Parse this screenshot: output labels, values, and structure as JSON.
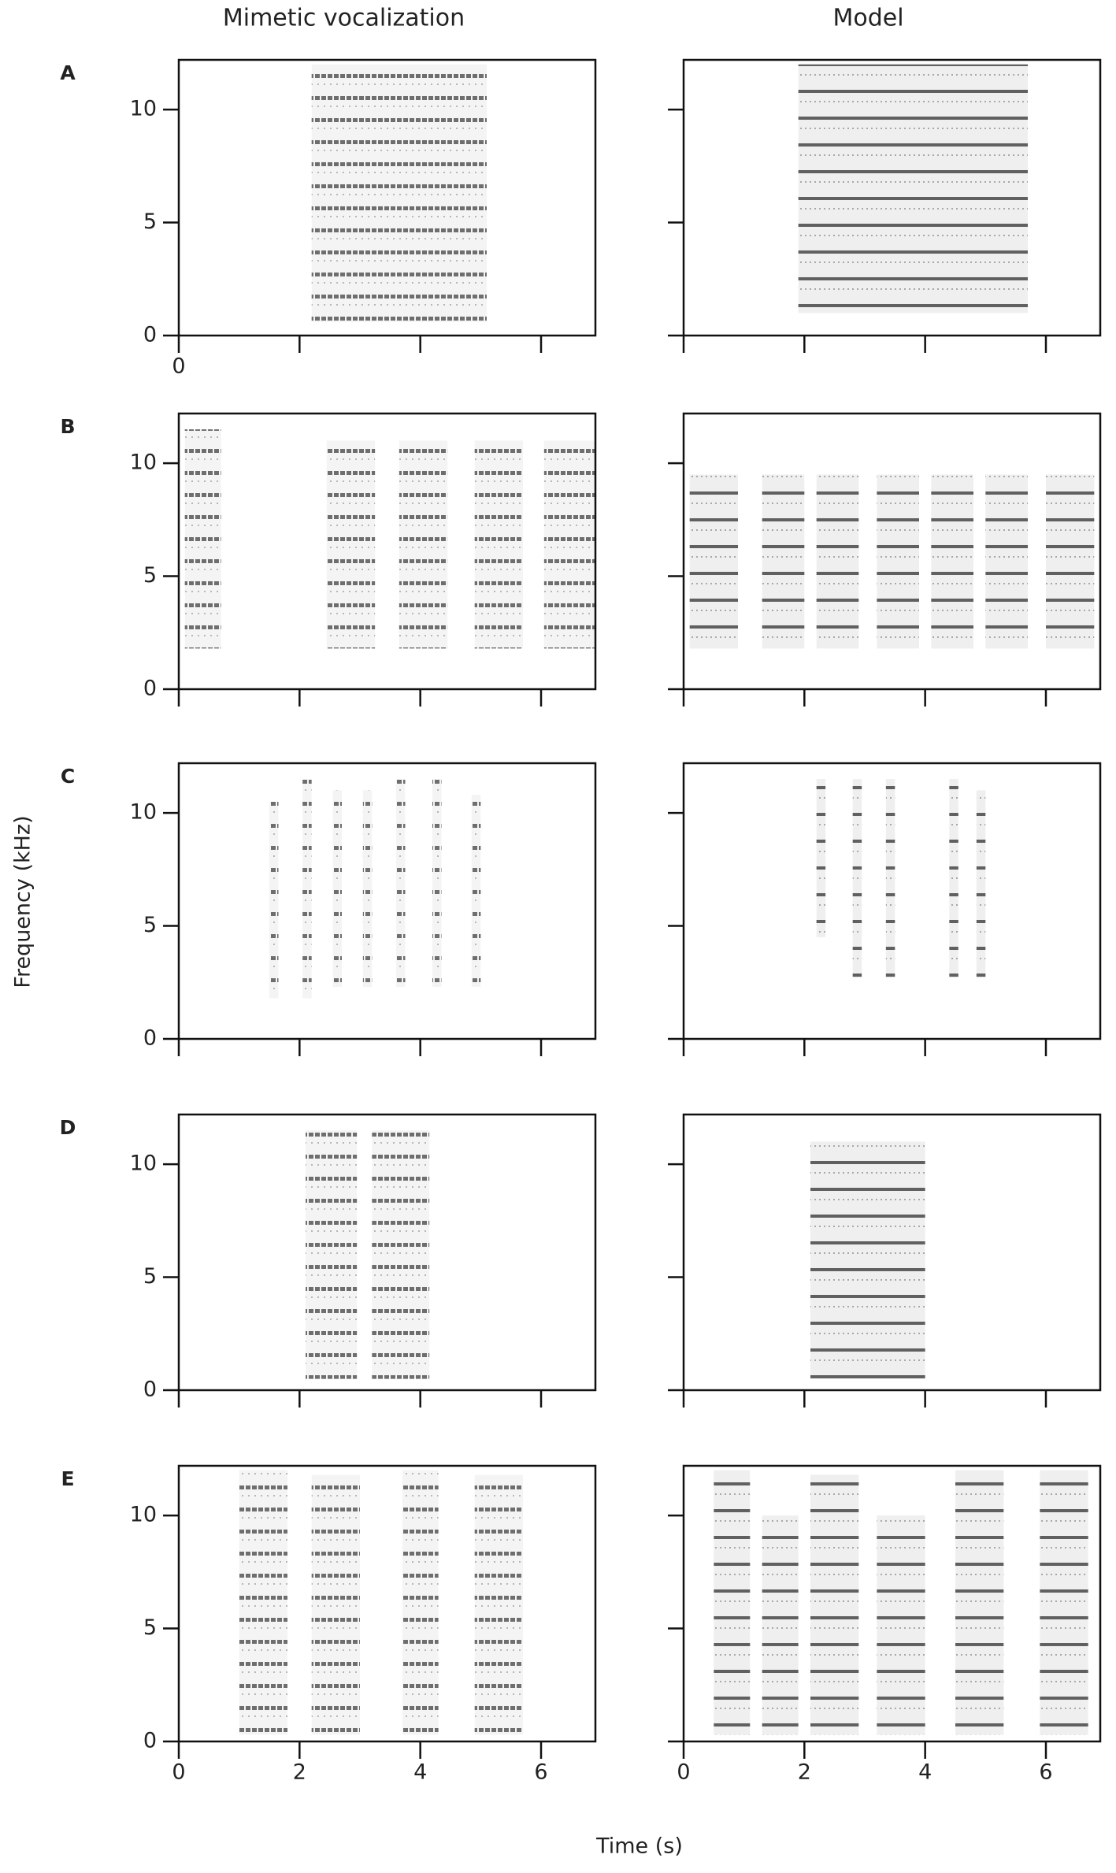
{
  "y_label": "Frequency (kHz)",
  "x_label": "Time (s)",
  "chart_data": [
    {
      "type": "spectrogram",
      "panel": "A",
      "title": "Mimetic vocalization",
      "xlim": [
        0,
        6.9
      ],
      "ylim": [
        0,
        12.2
      ],
      "yticks": [
        0,
        5,
        10
      ],
      "xticks": [
        0,
        {
          "value": 2,
          "label": null
        },
        {
          "value": 4,
          "label": null
        },
        {
          "value": 6,
          "label": null
        }
      ],
      "events": [
        {
          "x": [
            2.2,
            5.1
          ],
          "y": [
            0.6,
            12
          ]
        }
      ]
    },
    {
      "type": "spectrogram",
      "title": "Model",
      "xlim": [
        0,
        6.9
      ],
      "ylim": [
        0,
        12.2
      ],
      "yticks": [
        {
          "value": 0,
          "label": null
        },
        {
          "value": 5,
          "label": null
        },
        {
          "value": 10,
          "label": null
        }
      ],
      "xticks": [
        {
          "value": 0,
          "label": null
        },
        {
          "value": 2,
          "label": null
        },
        {
          "value": 4,
          "label": null
        },
        {
          "value": 6,
          "label": null
        }
      ],
      "events": [
        {
          "x": [
            1.9,
            5.7
          ],
          "y": [
            1,
            12
          ]
        }
      ]
    },
    {
      "type": "spectrogram",
      "panel": "B",
      "xlim": [
        0,
        6.9
      ],
      "ylim": [
        0,
        12.2
      ],
      "yticks": [
        0,
        5,
        10
      ],
      "xticks": [
        {
          "value": 0,
          "label": null
        },
        {
          "value": 2,
          "label": null
        },
        {
          "value": 4,
          "label": null
        },
        {
          "value": 6,
          "label": null
        }
      ],
      "events": [
        {
          "x": [
            0.1,
            0.7
          ],
          "y": [
            1.8,
            11.5
          ]
        },
        {
          "x": [
            2.45,
            3.25
          ],
          "y": [
            1.8,
            11
          ]
        },
        {
          "x": [
            3.65,
            4.45
          ],
          "y": [
            1.8,
            11
          ]
        },
        {
          "x": [
            4.9,
            5.7
          ],
          "y": [
            1.8,
            11
          ]
        },
        {
          "x": [
            6.05,
            6.9
          ],
          "y": [
            1.8,
            11
          ]
        }
      ]
    },
    {
      "type": "spectrogram",
      "xlim": [
        0,
        6.9
      ],
      "ylim": [
        0,
        12.2
      ],
      "yticks": [
        {
          "value": 0,
          "label": null
        },
        {
          "value": 5,
          "label": null
        },
        {
          "value": 10,
          "label": null
        }
      ],
      "xticks": [
        {
          "value": 0,
          "label": null
        },
        {
          "value": 2,
          "label": null
        },
        {
          "value": 4,
          "label": null
        },
        {
          "value": 6,
          "label": null
        }
      ],
      "events": [
        {
          "x": [
            0.1,
            0.9
          ],
          "y": [
            1.8,
            9.5
          ]
        },
        {
          "x": [
            1.3,
            2.0
          ],
          "y": [
            1.8,
            9.5
          ]
        },
        {
          "x": [
            2.2,
            2.9
          ],
          "y": [
            1.8,
            9.5
          ]
        },
        {
          "x": [
            3.2,
            3.9
          ],
          "y": [
            1.8,
            9.5
          ]
        },
        {
          "x": [
            4.1,
            4.8
          ],
          "y": [
            1.8,
            9.5
          ]
        },
        {
          "x": [
            5.0,
            5.7
          ],
          "y": [
            1.8,
            9.5
          ]
        },
        {
          "x": [
            6.0,
            6.8
          ],
          "y": [
            1.8,
            9.5
          ]
        }
      ]
    },
    {
      "type": "spectrogram",
      "panel": "C",
      "xlim": [
        0,
        6.9
      ],
      "ylim": [
        0,
        12.2
      ],
      "yticks": [
        0,
        5,
        10
      ],
      "xticks": [
        {
          "value": 0,
          "label": null
        },
        {
          "value": 2,
          "label": null
        },
        {
          "value": 4,
          "label": null
        },
        {
          "value": 6,
          "label": null
        }
      ],
      "events": [
        {
          "x": [
            1.5,
            1.65
          ],
          "y": [
            1.8,
            10.5
          ]
        },
        {
          "x": [
            2.05,
            2.2
          ],
          "y": [
            1.8,
            11.5
          ]
        },
        {
          "x": [
            2.55,
            2.7
          ],
          "y": [
            2.3,
            11
          ]
        },
        {
          "x": [
            3.05,
            3.2
          ],
          "y": [
            2.3,
            11
          ]
        },
        {
          "x": [
            3.6,
            3.75
          ],
          "y": [
            2.3,
            11.5
          ]
        },
        {
          "x": [
            4.2,
            4.35
          ],
          "y": [
            2.3,
            11.5
          ]
        },
        {
          "x": [
            4.85,
            5.0
          ],
          "y": [
            2.3,
            10.8
          ]
        }
      ]
    },
    {
      "type": "spectrogram",
      "xlim": [
        0,
        6.9
      ],
      "ylim": [
        0,
        12.2
      ],
      "yticks": [
        {
          "value": 0,
          "label": null
        },
        {
          "value": 5,
          "label": null
        },
        {
          "value": 10,
          "label": null
        }
      ],
      "xticks": [
        {
          "value": 0,
          "label": null
        },
        {
          "value": 2,
          "label": null
        },
        {
          "value": 4,
          "label": null
        },
        {
          "value": 6,
          "label": null
        }
      ],
      "events": [
        {
          "x": [
            2.2,
            2.35
          ],
          "y": [
            4.5,
            11.5
          ]
        },
        {
          "x": [
            2.8,
            2.95
          ],
          "y": [
            2.7,
            11.5
          ]
        },
        {
          "x": [
            3.35,
            3.5
          ],
          "y": [
            2.7,
            11.5
          ]
        },
        {
          "x": [
            4.4,
            4.55
          ],
          "y": [
            2.7,
            11.5
          ]
        },
        {
          "x": [
            4.85,
            5.0
          ],
          "y": [
            2.7,
            11
          ]
        }
      ]
    },
    {
      "type": "spectrogram",
      "panel": "D",
      "xlim": [
        0,
        6.9
      ],
      "ylim": [
        0,
        12.2
      ],
      "yticks": [
        0,
        5,
        10
      ],
      "xticks": [
        {
          "value": 0,
          "label": null
        },
        {
          "value": 2,
          "label": null
        },
        {
          "value": 4,
          "label": null
        },
        {
          "value": 6,
          "label": null
        }
      ],
      "events": [
        {
          "x": [
            2.1,
            2.95
          ],
          "y": [
            0.5,
            11.5
          ]
        },
        {
          "x": [
            3.2,
            4.15
          ],
          "y": [
            0.5,
            11.5
          ]
        }
      ]
    },
    {
      "type": "spectrogram",
      "xlim": [
        0,
        6.9
      ],
      "ylim": [
        0,
        12.2
      ],
      "yticks": [
        {
          "value": 0,
          "label": null
        },
        {
          "value": 5,
          "label": null
        },
        {
          "value": 10,
          "label": null
        }
      ],
      "xticks": [
        {
          "value": 0,
          "label": null
        },
        {
          "value": 2,
          "label": null
        },
        {
          "value": 4,
          "label": null
        },
        {
          "value": 6,
          "label": null
        }
      ],
      "events": [
        {
          "x": [
            2.1,
            4.0
          ],
          "y": [
            0.5,
            11
          ]
        }
      ]
    },
    {
      "type": "spectrogram",
      "panel": "E",
      "xlim": [
        0,
        6.9
      ],
      "ylim": [
        0,
        12.2
      ],
      "yticks": [
        0,
        5,
        10
      ],
      "xticks": [
        0,
        2,
        4,
        6
      ],
      "events": [
        {
          "x": [
            1.0,
            1.8
          ],
          "y": [
            0.3,
            12
          ]
        },
        {
          "x": [
            2.2,
            3.0
          ],
          "y": [
            0.3,
            11.8
          ]
        },
        {
          "x": [
            3.7,
            4.3
          ],
          "y": [
            0.3,
            12
          ]
        },
        {
          "x": [
            4.9,
            5.7
          ],
          "y": [
            0.3,
            11.8
          ]
        }
      ]
    },
    {
      "type": "spectrogram",
      "xlim": [
        0,
        6.9
      ],
      "ylim": [
        0,
        12.2
      ],
      "yticks": [
        {
          "value": 0,
          "label": null
        },
        {
          "value": 5,
          "label": null
        },
        {
          "value": 10,
          "label": null
        }
      ],
      "xticks": [
        0,
        2,
        4,
        6
      ],
      "events": [
        {
          "x": [
            0.5,
            1.1
          ],
          "y": [
            0.3,
            12
          ]
        },
        {
          "x": [
            1.3,
            1.9
          ],
          "y": [
            0.3,
            10
          ]
        },
        {
          "x": [
            2.1,
            2.9
          ],
          "y": [
            0.3,
            11.8
          ]
        },
        {
          "x": [
            3.2,
            4.0
          ],
          "y": [
            0.3,
            10
          ]
        },
        {
          "x": [
            4.5,
            5.3
          ],
          "y": [
            0.3,
            12
          ]
        },
        {
          "x": [
            5.9,
            6.7
          ],
          "y": [
            0.3,
            12
          ]
        }
      ]
    }
  ]
}
